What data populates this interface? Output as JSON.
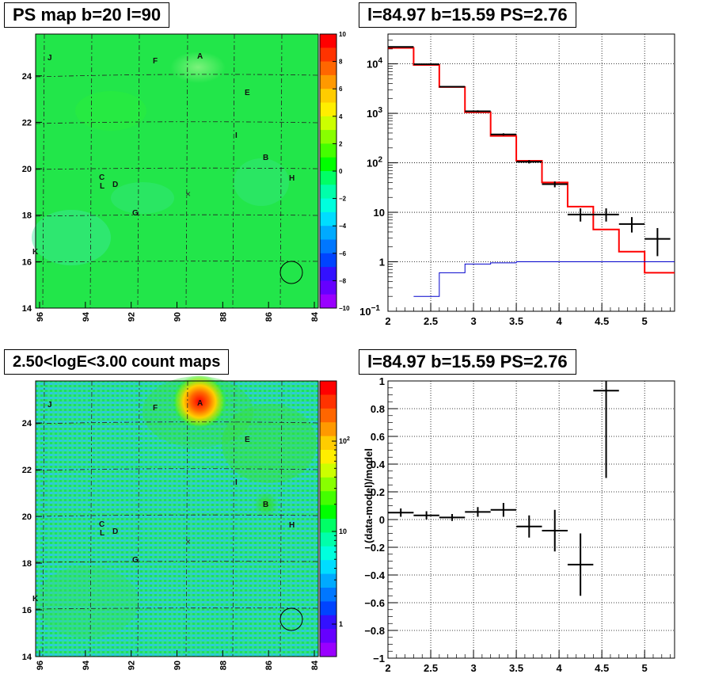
{
  "panels": {
    "tl": {
      "title": "PS map b=20 l=90"
    },
    "tr": {
      "title": "l=84.97 b=15.59 PS=2.76"
    },
    "bl": {
      "title": "2.50<logE<3.00 count maps"
    },
    "br": {
      "title": "l=84.97 b=15.59 PS=2.76"
    }
  },
  "maps": {
    "xticks": [
      "96",
      "94",
      "92",
      "90",
      "88",
      "86",
      "84"
    ],
    "yticks": [
      "14",
      "16",
      "18",
      "20",
      "22",
      "24"
    ],
    "sources": [
      "J",
      "A",
      "F",
      "E",
      "I",
      "B",
      "H",
      "C",
      "L",
      "D",
      "G",
      "K"
    ],
    "center_marker": "×",
    "ps_map_colorbar": {
      "min": -10,
      "max": 10,
      "ticks": [
        "10",
        "8",
        "6",
        "4",
        "2",
        "0",
        "−2",
        "−4",
        "−6",
        "−8",
        "−10"
      ]
    },
    "count_map_colorbar": {
      "scale": "log",
      "ticks": [
        "10^2",
        "10",
        "1"
      ]
    }
  },
  "chart_data": [
    {
      "type": "heatmap",
      "title": "PS map b=20 l=90",
      "x_range": [
        96,
        84
      ],
      "y_range": [
        14,
        25.8
      ],
      "color_range": [
        -10,
        10
      ]
    },
    {
      "type": "line",
      "title": "l=84.97 b=15.59 PS=2.76",
      "yscale": "log",
      "xlim": [
        2,
        5.35
      ],
      "ylim": [
        0.1,
        40000
      ],
      "xticks": [
        "2",
        "2.5",
        "3",
        "3.5",
        "4",
        "4.5",
        "5"
      ],
      "yticks": [
        "10^{-1}",
        "1",
        "10",
        "10^2",
        "10^3",
        "10^4"
      ],
      "series": [
        {
          "role": "model",
          "color": "#ff0000",
          "edges": [
            2.0,
            2.3,
            2.6,
            2.9,
            3.2,
            3.5,
            3.8,
            4.1,
            4.4,
            4.7,
            5.0,
            5.35
          ],
          "values": [
            21000,
            9500,
            3400,
            1050,
            350,
            110,
            40,
            13,
            4.5,
            1.6,
            0.6
          ]
        },
        {
          "role": "background",
          "color": "#0000cc",
          "edges": [
            2.3,
            2.6,
            2.9,
            3.2,
            3.5,
            3.8,
            4.1,
            4.4,
            4.7,
            5.0,
            5.35
          ],
          "values": [
            0.2,
            0.6,
            0.9,
            0.95,
            1.0,
            1.0,
            1.0,
            1.0,
            1.0,
            1.0
          ]
        },
        {
          "role": "data",
          "color": "#000000",
          "x": [
            2.15,
            2.45,
            2.75,
            3.05,
            3.35,
            3.65,
            3.95,
            4.25,
            4.55,
            4.85,
            5.15
          ],
          "xerr": 0.15,
          "y": [
            22000,
            9800,
            3450,
            1100,
            375,
            105,
            37,
            9,
            9,
            5.8,
            2.9
          ],
          "ylow": [
            21500,
            9600,
            3380,
            1050,
            355,
            97,
            32,
            6.5,
            6.5,
            3.9,
            1.3
          ],
          "yhigh": [
            22500,
            10000,
            3520,
            1150,
            395,
            113,
            42,
            12,
            12,
            8,
            4.8
          ]
        }
      ]
    },
    {
      "type": "heatmap",
      "title": "2.50<logE<3.00 count maps",
      "x_range": [
        96,
        84
      ],
      "y_range": [
        14,
        25.8
      ],
      "color_scale": "log"
    },
    {
      "type": "scatter",
      "title": "l=84.97 b=15.59 PS=2.76",
      "ylabel": "(data-model)/model",
      "xlim": [
        2,
        5.35
      ],
      "ylim": [
        -1,
        1
      ],
      "xticks": [
        "2",
        "2.5",
        "3",
        "3.5",
        "4",
        "4.5",
        "5"
      ],
      "yticks": [
        "−1",
        "−0.8",
        "−0.6",
        "−0.4",
        "−0.2",
        "0",
        "0.2",
        "0.4",
        "0.6",
        "0.8",
        "1"
      ],
      "series": [
        {
          "role": "residual",
          "color": "#000000",
          "x": [
            2.15,
            2.45,
            2.75,
            3.05,
            3.35,
            3.65,
            3.95,
            4.25,
            4.55
          ],
          "xerr": 0.15,
          "y": [
            0.05,
            0.03,
            0.015,
            0.055,
            0.07,
            -0.05,
            -0.08,
            -0.325,
            0.93
          ],
          "ylow": [
            0.02,
            0.0,
            -0.01,
            0.02,
            0.02,
            -0.13,
            -0.23,
            -0.55,
            0.3
          ],
          "yhigh": [
            0.08,
            0.06,
            0.04,
            0.09,
            0.12,
            0.03,
            0.07,
            -0.1,
            1.0
          ]
        }
      ]
    }
  ]
}
